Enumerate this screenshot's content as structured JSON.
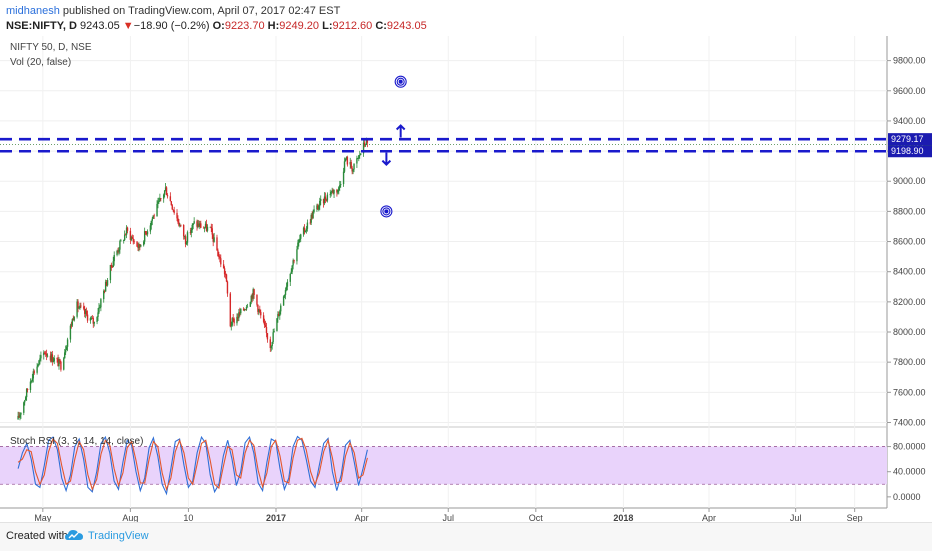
{
  "header": {
    "author": "midhanesh",
    "published": "published on TradingView.com, April 07, 2017 02:47 EST",
    "symbol_line": "NSE:NIFTY, D",
    "last": "9243.05",
    "change_arrow": "▼",
    "change": "−18.90 (−0.2%)",
    "o_label": "O:",
    "o": "9223.70",
    "h_label": "H:",
    "h": "9249.20",
    "l_label": "L:",
    "l": "9212.60",
    "c_label": "C:",
    "c": "9243.05"
  },
  "footer": {
    "created": "Created with",
    "brand": "TradingView",
    "logo_icon": "tradingview-cloud-icon"
  },
  "colors": {
    "up": "#2a8a3a",
    "down": "#d62728",
    "level": "#1a1acc",
    "rsi_k": "#2f6fd6",
    "rsi_d": "#e4572e",
    "rsi_band": "#e9d3fb"
  },
  "chart_data": [
    {
      "type": "candlestick",
      "title": "NIFTY 50, D, NSE",
      "indicator_label": "Vol (20, false)",
      "ylim": [
        7370,
        9950
      ],
      "yticks": [
        "9800.00",
        "9600.00",
        "9400.00",
        "9200.00",
        "9000.00",
        "8800.00",
        "8600.00",
        "8400.00",
        "8200.00",
        "8000.00",
        "7800.00",
        "7600.00",
        "7400.00"
      ],
      "x_tick_labels": [
        "May",
        "Aug",
        "10",
        "2017",
        "Apr",
        "Jul",
        "Oct",
        "2018",
        "Apr",
        "Jul",
        "Sep"
      ],
      "price_path": [
        [
          "2016-04-05",
          7420
        ],
        [
          "2016-04-20",
          7720
        ],
        [
          "2016-05-03",
          7870
        ],
        [
          "2016-05-20",
          7780
        ],
        [
          "2016-06-05",
          8180
        ],
        [
          "2016-06-24",
          8060
        ],
        [
          "2016-07-15",
          8500
        ],
        [
          "2016-07-28",
          8670
        ],
        [
          "2016-08-10",
          8560
        ],
        [
          "2016-09-07",
          8950
        ],
        [
          "2016-09-28",
          8610
        ],
        [
          "2016-10-07",
          8720
        ],
        [
          "2016-10-24",
          8680
        ],
        [
          "2016-11-03",
          8480
        ],
        [
          "2016-11-09",
          8380
        ],
        [
          "2016-11-14",
          8050
        ],
        [
          "2016-11-28",
          8150
        ],
        [
          "2016-12-08",
          8260
        ],
        [
          "2016-12-26",
          7910
        ],
        [
          "2017-01-12",
          8320
        ],
        [
          "2017-01-25",
          8600
        ],
        [
          "2017-02-10",
          8800
        ],
        [
          "2017-02-27",
          8930
        ],
        [
          "2017-03-08",
          8950
        ],
        [
          "2017-03-15",
          9150
        ],
        [
          "2017-03-23",
          9080
        ],
        [
          "2017-04-05",
          9262
        ],
        [
          "2017-04-07",
          9243
        ]
      ],
      "levels": [
        {
          "value": 9279.17,
          "label": "9279.17"
        },
        {
          "value": 9198.9,
          "label": "9198.90"
        }
      ],
      "last_price": {
        "value": 9243.05,
        "label": "9243.05"
      },
      "annotations": [
        {
          "type": "target-marker",
          "date": "2017-05-12",
          "value": 9660
        },
        {
          "type": "target-marker",
          "date": "2017-04-27",
          "value": 8800
        },
        {
          "type": "arrow-up",
          "date": "2017-05-12",
          "value": 9330
        },
        {
          "type": "arrow-down",
          "date": "2017-04-27",
          "value": 9150
        }
      ]
    },
    {
      "type": "line",
      "title": "Stoch RSI (3, 3, 14, 14, close)",
      "ylim": [
        -5,
        100
      ],
      "yticks": [
        "80.0000",
        "40.0000",
        "0.0000"
      ],
      "band": [
        20,
        80
      ],
      "series": [
        {
          "x_start": "2016-04-05",
          "x_end": "2017-04-07",
          "values": [
            45,
            70,
            85,
            60,
            20,
            15,
            50,
            90,
            95,
            75,
            30,
            10,
            35,
            80,
            92,
            60,
            15,
            8,
            40,
            85,
            95,
            70,
            25,
            12,
            55,
            90,
            82,
            40,
            10,
            30,
            78,
            94,
            65,
            20,
            5,
            45,
            88,
            92,
            50,
            15,
            25,
            70,
            95,
            85,
            35,
            8,
            20,
            65,
            90,
            60,
            18,
            40,
            86,
            95,
            70,
            22,
            10,
            55,
            92,
            88,
            45,
            12,
            30,
            80,
            96,
            90,
            60,
            25,
            15,
            50,
            85,
            93,
            40,
            10,
            35,
            82,
            90,
            55,
            18,
            45,
            75
          ]
        },
        {
          "x_start": "2016-04-05",
          "x_end": "2017-04-07",
          "values": [
            55,
            60,
            75,
            72,
            40,
            20,
            35,
            72,
            92,
            85,
            50,
            20,
            25,
            60,
            88,
            75,
            35,
            12,
            28,
            68,
            90,
            82,
            45,
            18,
            38,
            78,
            88,
            58,
            22,
            22,
            60,
            88,
            80,
            38,
            12,
            30,
            72,
            90,
            70,
            30,
            20,
            52,
            85,
            90,
            58,
            20,
            14,
            48,
            80,
            75,
            35,
            30,
            70,
            90,
            82,
            42,
            16,
            38,
            80,
            90,
            65,
            25,
            22,
            62,
            90,
            93,
            75,
            40,
            20,
            38,
            72,
            90,
            62,
            22,
            25,
            65,
            86,
            70,
            30,
            35,
            62
          ]
        }
      ]
    }
  ]
}
